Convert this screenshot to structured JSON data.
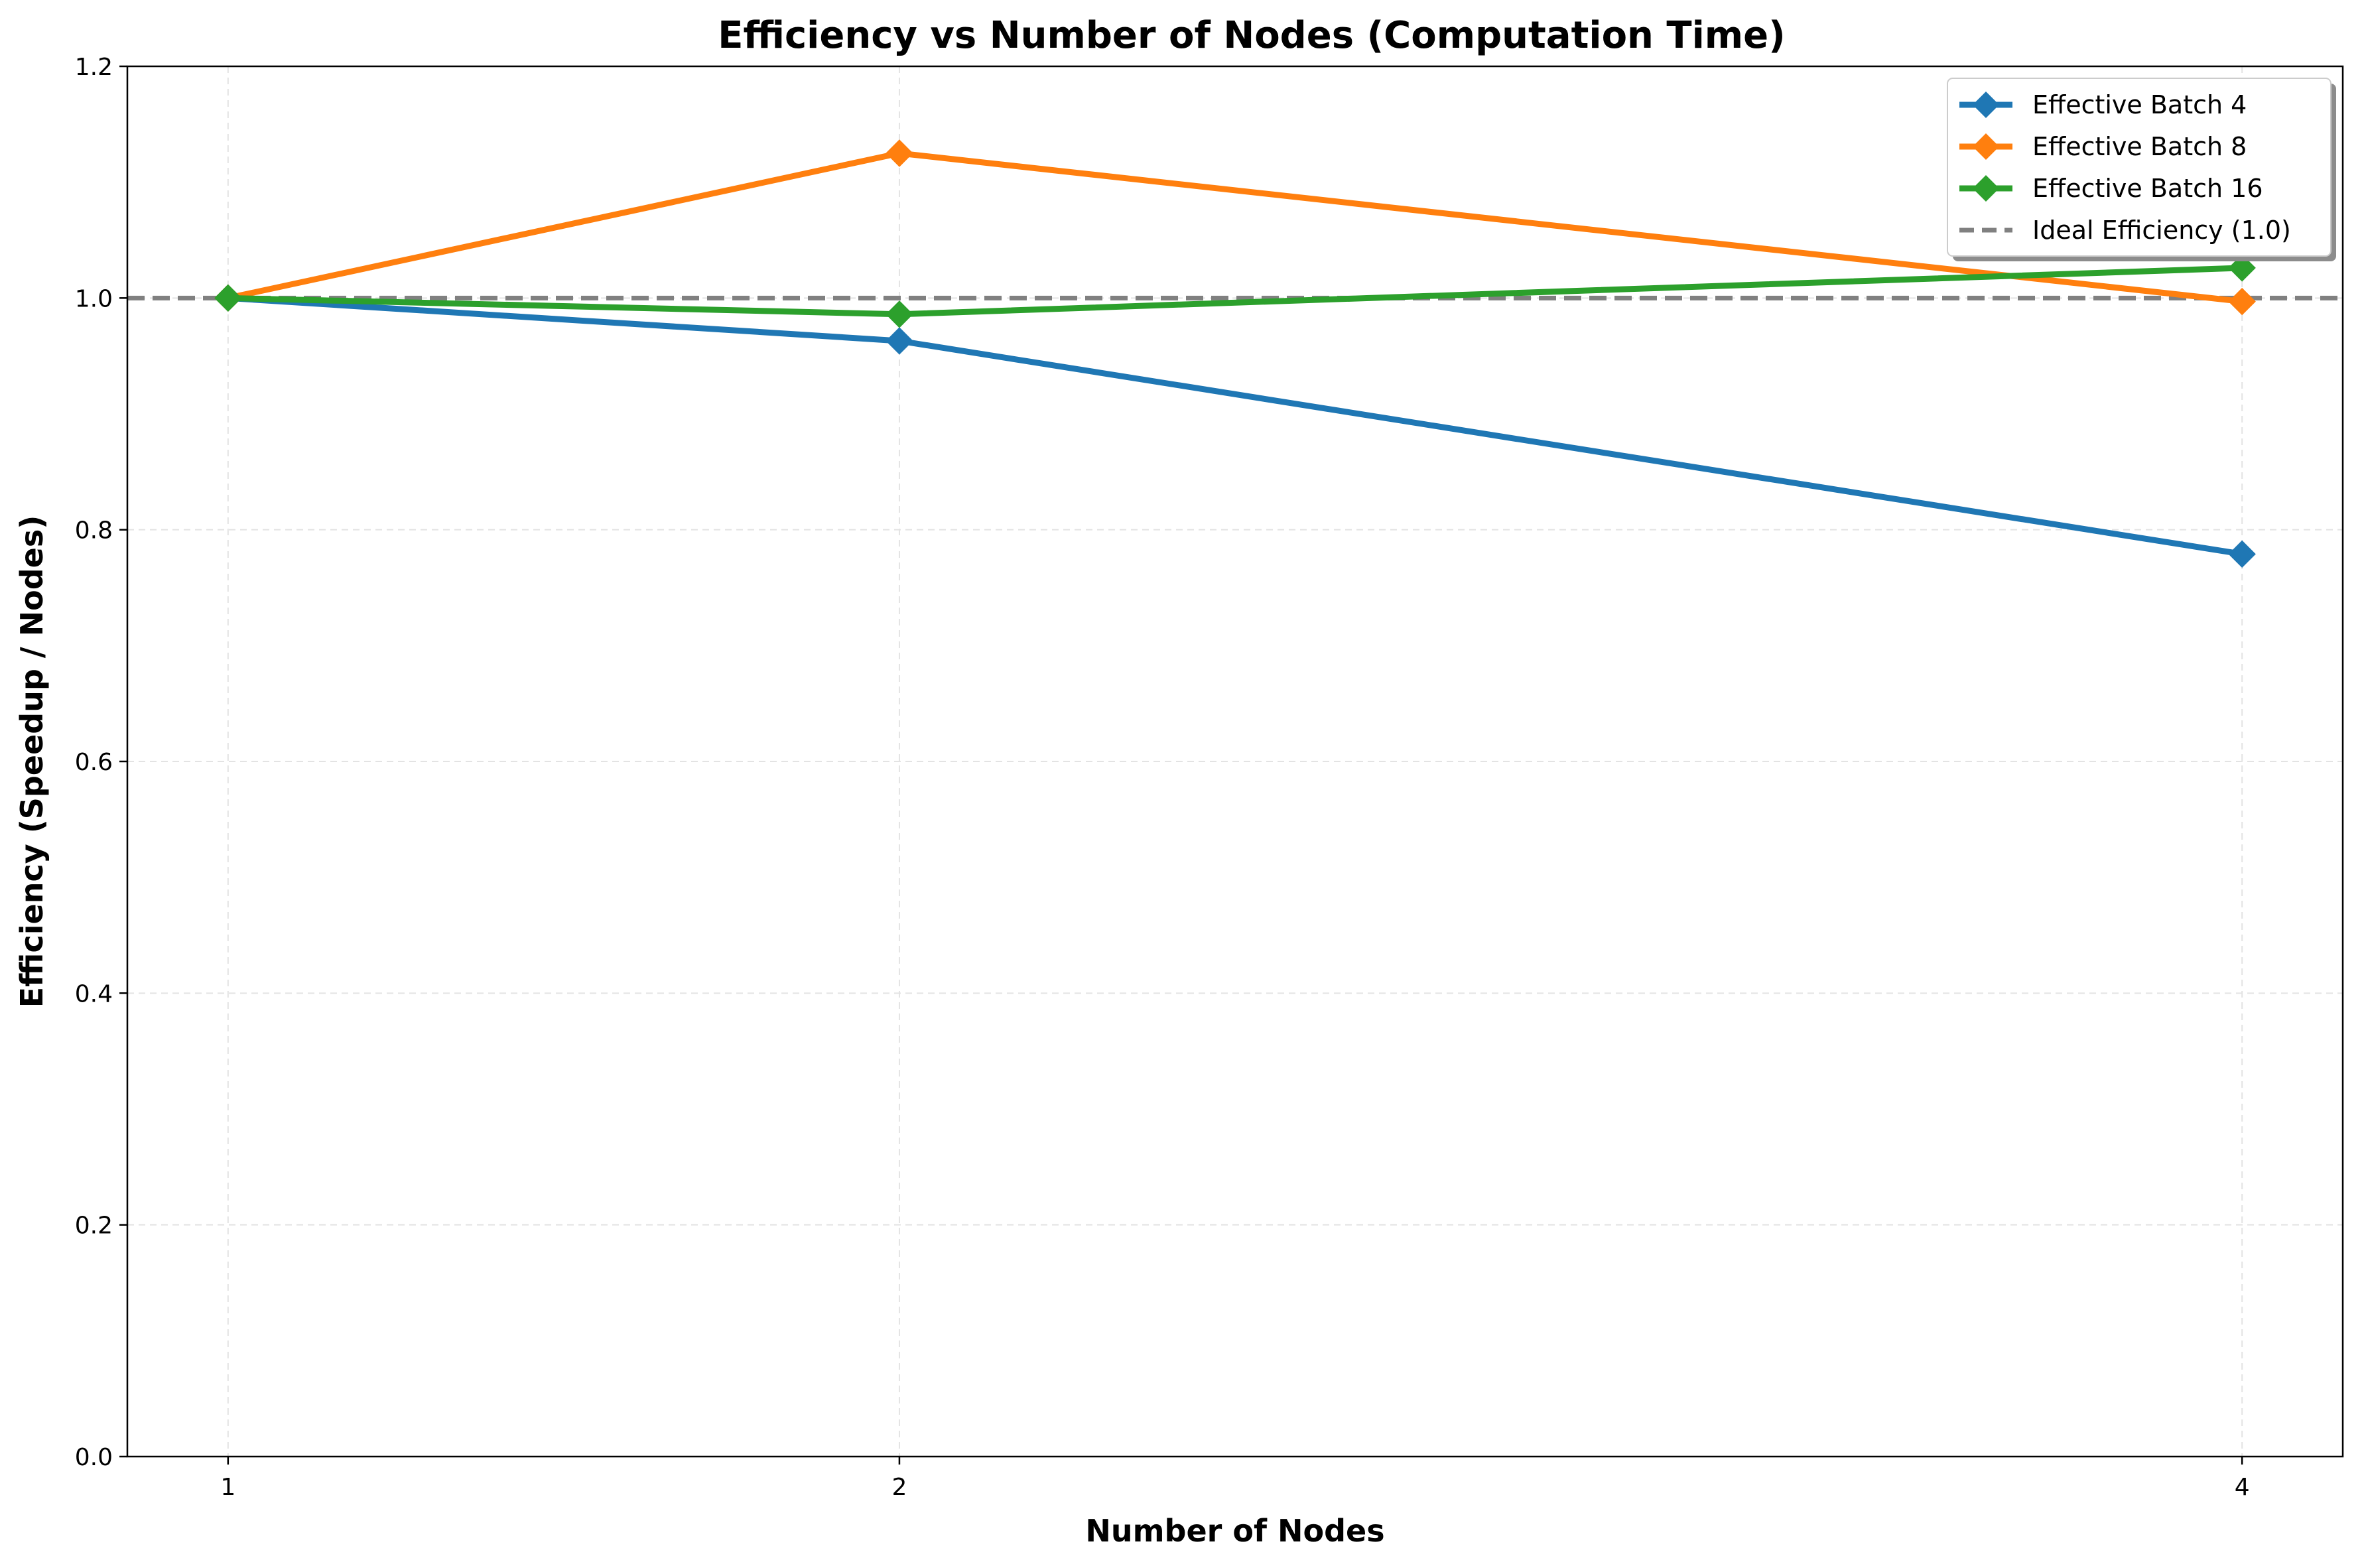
{
  "chart_data": {
    "type": "line",
    "title": "Efficiency vs Number of Nodes (Computation Time)",
    "xlabel": "Number of Nodes",
    "ylabel": "Efficiency (Speedup / Nodes)",
    "x": [
      1,
      2,
      4
    ],
    "x_ticks": [
      "1",
      "2",
      "4"
    ],
    "y_ticks": [
      "0.0",
      "0.2",
      "0.4",
      "0.6",
      "0.8",
      "1.0",
      "1.2"
    ],
    "xlim": [
      0.85,
      4.15
    ],
    "ylim": [
      0.0,
      1.2
    ],
    "grid": true,
    "legend_position": "top-right",
    "series": [
      {
        "name": "Effective Batch 4",
        "color": "#1f77b4",
        "marker": "diamond",
        "values": [
          1.0,
          0.963,
          0.779
        ]
      },
      {
        "name": "Effective Batch 8",
        "color": "#ff7f0e",
        "marker": "diamond",
        "values": [
          1.0,
          1.125,
          0.997
        ]
      },
      {
        "name": "Effective Batch 16",
        "color": "#2ca02c",
        "marker": "diamond",
        "values": [
          1.0,
          0.986,
          1.026
        ]
      }
    ],
    "reference_line": {
      "name": "Ideal Efficiency (1.0)",
      "value": 1.0,
      "color": "#808080",
      "style": "dashed"
    }
  }
}
